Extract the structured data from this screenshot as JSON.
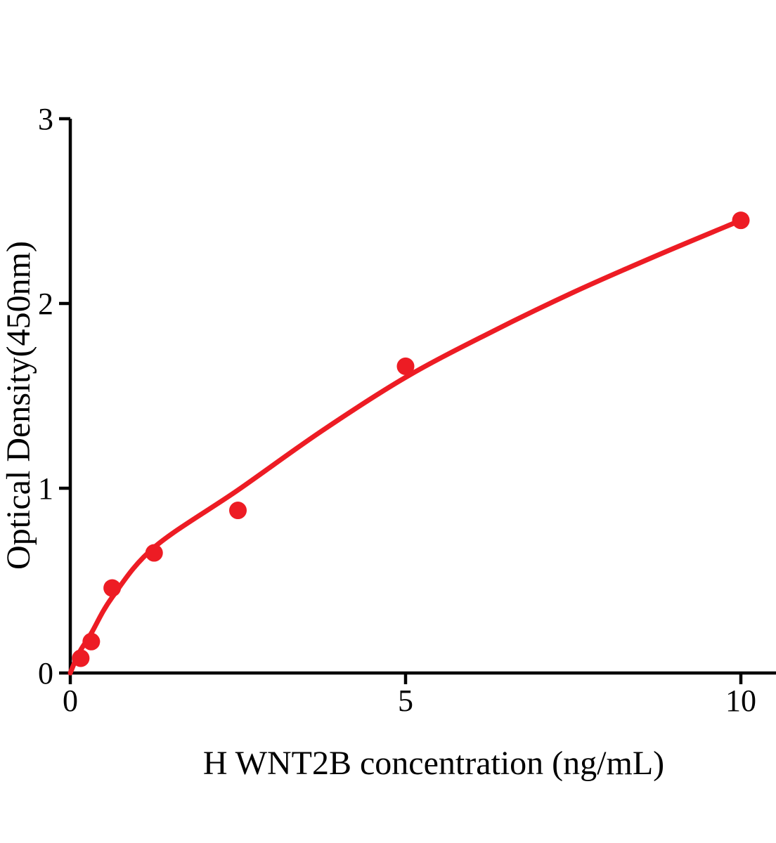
{
  "chart_data": {
    "type": "scatter",
    "title": "",
    "xlabel": "H WNT2B concentration (ng/mL)",
    "ylabel": "Optical Density(450nm)",
    "x": [
      0.156,
      0.313,
      0.625,
      1.25,
      2.5,
      5,
      10
    ],
    "y": [
      0.08,
      0.17,
      0.46,
      0.65,
      0.88,
      1.66,
      2.45
    ],
    "curve_points": [
      [
        0,
        0
      ],
      [
        0.08,
        0.07
      ],
      [
        0.156,
        0.125
      ],
      [
        0.313,
        0.215
      ],
      [
        0.625,
        0.41
      ],
      [
        1.25,
        0.68
      ],
      [
        2.5,
        0.99
      ],
      [
        3.75,
        1.31
      ],
      [
        5,
        1.6
      ],
      [
        6.25,
        1.84
      ],
      [
        7.5,
        2.06
      ],
      [
        8.75,
        2.26
      ],
      [
        10,
        2.45
      ]
    ],
    "xticks": [
      0,
      5,
      10
    ],
    "yticks": [
      0,
      1,
      2,
      3
    ],
    "xlim": [
      0,
      10.5
    ],
    "ylim": [
      0,
      3
    ],
    "grid": false,
    "legend": "none",
    "marker_color": "#ed1c24",
    "line_color": "#ed1c24",
    "axis_color": "#000000"
  }
}
